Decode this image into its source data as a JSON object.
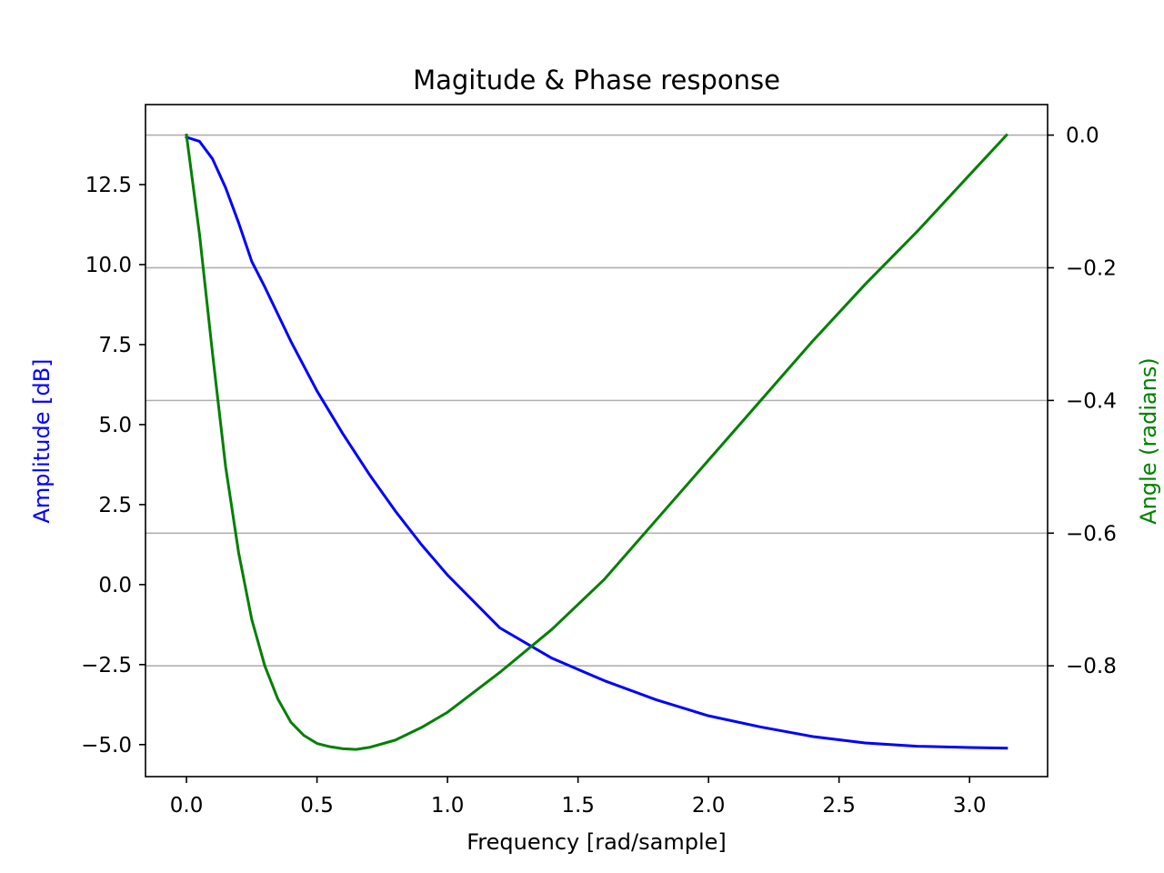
{
  "chart_data": {
    "type": "line",
    "title": "Magitude & Phase response",
    "xlabel": "Frequency [rad/sample]",
    "xlim": [
      -0.157,
      3.299
    ],
    "x_ticks": [
      0.0,
      0.5,
      1.0,
      1.5,
      2.0,
      2.5,
      3.0
    ],
    "x_tick_labels": [
      "0.0",
      "0.5",
      "1.0",
      "1.5",
      "2.0",
      "2.5",
      "3.0"
    ],
    "grid": "horizontal, right axis ticks",
    "left_axis": {
      "label": "Amplitude [dB]",
      "color": "#0000ff",
      "ylim": [
        -6.0,
        15.0
      ],
      "ticks": [
        12.5,
        10.0,
        7.5,
        5.0,
        2.5,
        0.0,
        -2.5,
        -5.0
      ],
      "tick_labels": [
        "12.5",
        "10.0",
        "7.5",
        "5.0",
        "2.5",
        "0.0",
        "−2.5",
        "−5.0"
      ]
    },
    "right_axis": {
      "label": "Angle (radians)",
      "color": "#008000",
      "ylim": [
        -0.967,
        0.046
      ],
      "ticks": [
        0.0,
        -0.2,
        -0.4,
        -0.6,
        -0.8
      ],
      "tick_labels": [
        "0.0",
        "−0.2",
        "−0.4",
        "−0.6",
        "−0.8"
      ]
    },
    "series": [
      {
        "axis": "left",
        "color": "#0000ff",
        "x": [
          0.0,
          0.05,
          0.1,
          0.15,
          0.2,
          0.25,
          0.3,
          0.4,
          0.5,
          0.6,
          0.7,
          0.8,
          0.9,
          1.0,
          1.2,
          1.4,
          1.6,
          1.8,
          2.0,
          2.2,
          2.4,
          2.6,
          2.8,
          3.0,
          3.1416
        ],
        "values": [
          13.98,
          13.85,
          13.3,
          12.4,
          11.3,
          10.1,
          9.3,
          7.6,
          6.05,
          4.7,
          3.45,
          2.3,
          1.25,
          0.3,
          -1.35,
          -2.3,
          -3.0,
          -3.6,
          -4.1,
          -4.45,
          -4.75,
          -4.95,
          -5.05,
          -5.09,
          -5.11
        ]
      },
      {
        "axis": "right",
        "color": "#008000",
        "x": [
          0.0,
          0.05,
          0.1,
          0.15,
          0.2,
          0.25,
          0.3,
          0.35,
          0.4,
          0.45,
          0.5,
          0.55,
          0.6,
          0.65,
          0.7,
          0.8,
          0.9,
          1.0,
          1.2,
          1.4,
          1.6,
          1.8,
          2.0,
          2.2,
          2.4,
          2.6,
          2.8,
          3.0,
          3.1416
        ],
        "values": [
          0.0,
          -0.15,
          -0.33,
          -0.5,
          -0.63,
          -0.73,
          -0.8,
          -0.85,
          -0.885,
          -0.905,
          -0.917,
          -0.922,
          -0.925,
          -0.926,
          -0.923,
          -0.912,
          -0.893,
          -0.87,
          -0.81,
          -0.745,
          -0.67,
          -0.58,
          -0.49,
          -0.4,
          -0.31,
          -0.225,
          -0.145,
          -0.06,
          0.0
        ]
      }
    ]
  }
}
